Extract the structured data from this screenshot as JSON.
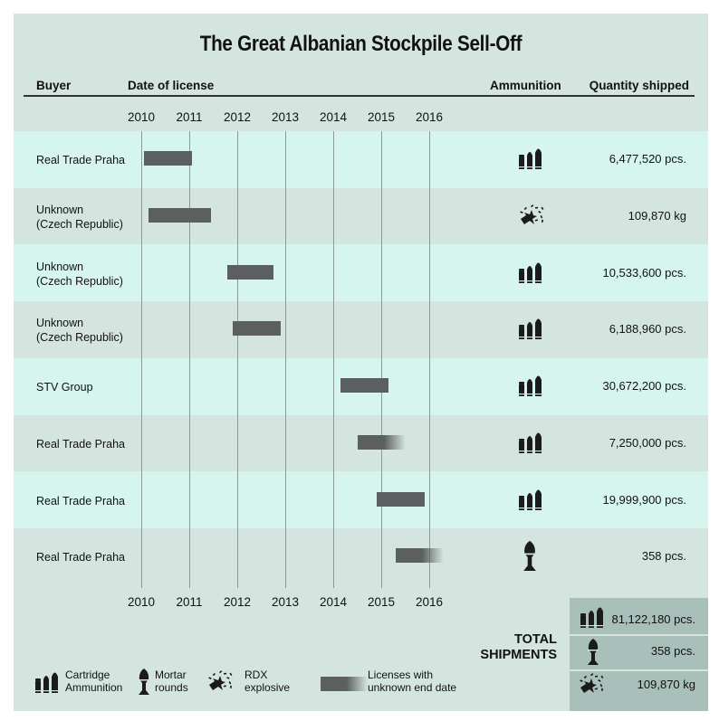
{
  "title": "The Great Albanian Stockpile Sell-Off",
  "headers": {
    "buyer": "Buyer",
    "date": "Date of license",
    "ammunition": "Ammunition",
    "quantity": "Quantity shipped"
  },
  "chart_data": {
    "type": "gantt",
    "x_ticks": [
      "2010",
      "2011",
      "2012",
      "2013",
      "2014",
      "2015",
      "2016"
    ],
    "xlim": [
      2010,
      2016
    ],
    "rows": [
      {
        "buyer": [
          "Real Trade Praha"
        ],
        "start": 2010.05,
        "end": 2011.05,
        "unknown_end": false,
        "ammunition": "cartridge-icon",
        "quantity": "6,477,520 pcs."
      },
      {
        "buyer": [
          "Unknown",
          "(Czech Republic)"
        ],
        "start": 2010.15,
        "end": 2011.45,
        "unknown_end": false,
        "ammunition": "rdx-explosive-icon",
        "quantity": "109,870 kg"
      },
      {
        "buyer": [
          "Unknown",
          "(Czech Republic)"
        ],
        "start": 2011.8,
        "end": 2012.75,
        "unknown_end": false,
        "ammunition": "cartridge-icon",
        "quantity": "10,533,600 pcs."
      },
      {
        "buyer": [
          "Unknown",
          "(Czech Republic)"
        ],
        "start": 2011.9,
        "end": 2012.9,
        "unknown_end": false,
        "ammunition": "cartridge-icon",
        "quantity": "6,188,960 pcs."
      },
      {
        "buyer": [
          "STV Group"
        ],
        "start": 2014.15,
        "end": 2015.15,
        "unknown_end": false,
        "ammunition": "cartridge-icon",
        "quantity": "30,672,200 pcs."
      },
      {
        "buyer": [
          "Real Trade Praha"
        ],
        "start": 2014.5,
        "end": 2015.5,
        "unknown_end": true,
        "ammunition": "cartridge-icon",
        "quantity": "7,250,000 pcs."
      },
      {
        "buyer": [
          "Real Trade Praha"
        ],
        "start": 2014.9,
        "end": 2015.9,
        "unknown_end": false,
        "ammunition": "cartridge-icon",
        "quantity": "19,999,900 pcs."
      },
      {
        "buyer": [
          "Real Trade Praha"
        ],
        "start": 2015.3,
        "end": 2016.3,
        "unknown_end": true,
        "ammunition": "mortar-icon",
        "quantity": "358 pcs."
      }
    ]
  },
  "totals": {
    "label_line1": "TOTAL",
    "label_line2": "SHIPMENTS",
    "cartridge": "81,122,180 pcs.",
    "mortar": "358 pcs.",
    "rdx": "109,870 kg"
  },
  "legend": {
    "cartridge": [
      "Cartridge",
      "Ammunition"
    ],
    "mortar": [
      "Mortar",
      "rounds"
    ],
    "rdx": [
      "RDX",
      "explosive"
    ],
    "unknown_end": [
      "Licenses with",
      "unknown end date"
    ]
  },
  "colors": {
    "bar": "#5c5f5f",
    "row_light": "#d6f5ef",
    "row_dark": "#d4e5e0",
    "totals_box": "#a8bfba"
  }
}
